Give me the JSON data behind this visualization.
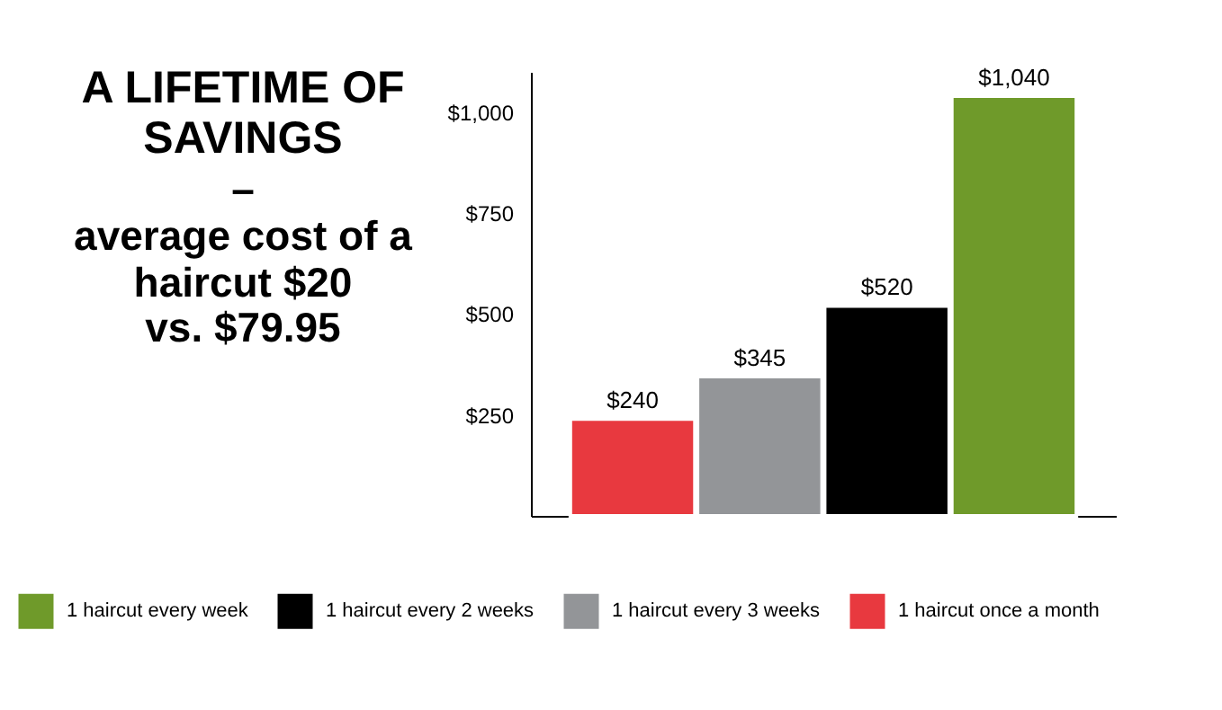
{
  "chart_data": {
    "type": "bar",
    "title": "A LIFETIME OF SAVINGS",
    "subtitle": "–\naverage cost of a haircut $20\nvs. $79.95",
    "categories": [
      null,
      null,
      null,
      null
    ],
    "series": [
      {
        "name": "1 haircut every week",
        "color": "#6f9a2a",
        "values": [
          null,
          null,
          null,
          1040
        ],
        "value_labels": [
          null,
          null,
          null,
          "$1,040"
        ]
      },
      {
        "name": "1 haircut every 2 weeks",
        "color": "#000000",
        "values": [
          null,
          null,
          520,
          null
        ],
        "value_labels": [
          null,
          null,
          "$520",
          null
        ]
      },
      {
        "name": "1 haircut every 3 weeks",
        "color": "#939598",
        "values": [
          null,
          345,
          null,
          null
        ],
        "value_labels": [
          null,
          "$345",
          null,
          null
        ]
      },
      {
        "name": "1 haircut once a month",
        "color": "#e8393f",
        "values": [
          240,
          null,
          null,
          null
        ],
        "value_labels": [
          "$240",
          null,
          null,
          null
        ]
      }
    ],
    "ylim": [
      0,
      1100
    ],
    "yticks": [
      {
        "value": 250,
        "label": "$250"
      },
      {
        "value": 500,
        "label": "$500"
      },
      {
        "value": 750,
        "label": "$750"
      },
      {
        "value": 1000,
        "label": "$1,000"
      }
    ],
    "grid": false,
    "legend": "bottom"
  }
}
